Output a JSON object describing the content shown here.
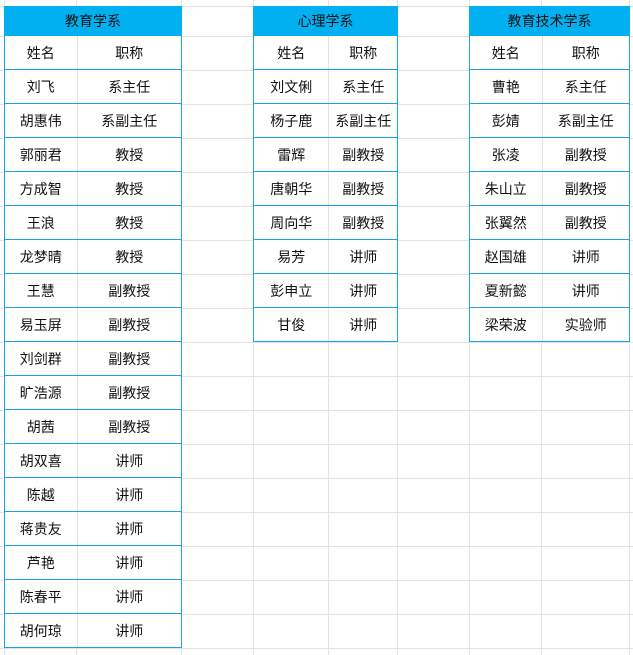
{
  "tables": [
    {
      "title": "教育学系",
      "headers": [
        "姓名",
        "职称"
      ],
      "rows": [
        [
          "刘飞",
          "系主任"
        ],
        [
          "胡惠伟",
          "系副主任"
        ],
        [
          "郭丽君",
          "教授"
        ],
        [
          "方成智",
          "教授"
        ],
        [
          "王浪",
          "教授"
        ],
        [
          "龙梦晴",
          "教授"
        ],
        [
          "王慧",
          "副教授"
        ],
        [
          "易玉屏",
          "副教授"
        ],
        [
          "刘剑群",
          "副教授"
        ],
        [
          "旷浩源",
          "副教授"
        ],
        [
          "胡茜",
          "副教授"
        ],
        [
          "胡双喜",
          "讲师"
        ],
        [
          "陈越",
          "讲师"
        ],
        [
          "蒋贵友",
          "讲师"
        ],
        [
          "芦艳",
          "讲师"
        ],
        [
          "陈春平",
          "讲师"
        ],
        [
          "胡何琼",
          "讲师"
        ]
      ]
    },
    {
      "title": "心理学系",
      "headers": [
        "姓名",
        "职称"
      ],
      "rows": [
        [
          "刘文俐",
          "系主任"
        ],
        [
          "杨子鹿",
          "系副主任"
        ],
        [
          "雷辉",
          "副教授"
        ],
        [
          "唐朝华",
          "副教授"
        ],
        [
          "周向华",
          "副教授"
        ],
        [
          "易芳",
          "讲师"
        ],
        [
          "彭申立",
          "讲师"
        ],
        [
          "甘俊",
          "讲师"
        ]
      ]
    },
    {
      "title": "教育技术学系",
      "headers": [
        "姓名",
        "职称"
      ],
      "rows": [
        [
          "曹艳",
          "系主任"
        ],
        [
          "彭婧",
          "系副主任"
        ],
        [
          "张凌",
          "副教授"
        ],
        [
          "朱山立",
          "副教授"
        ],
        [
          "张翼然",
          "副教授"
        ],
        [
          "赵国雄",
          "讲师"
        ],
        [
          "夏新懿",
          "讲师"
        ],
        [
          "梁荣波",
          "实验师"
        ]
      ]
    }
  ],
  "colors": {
    "header_bg": "#00b0f0",
    "border": "#1aa3e8",
    "gridline": "#e2e2e2"
  }
}
